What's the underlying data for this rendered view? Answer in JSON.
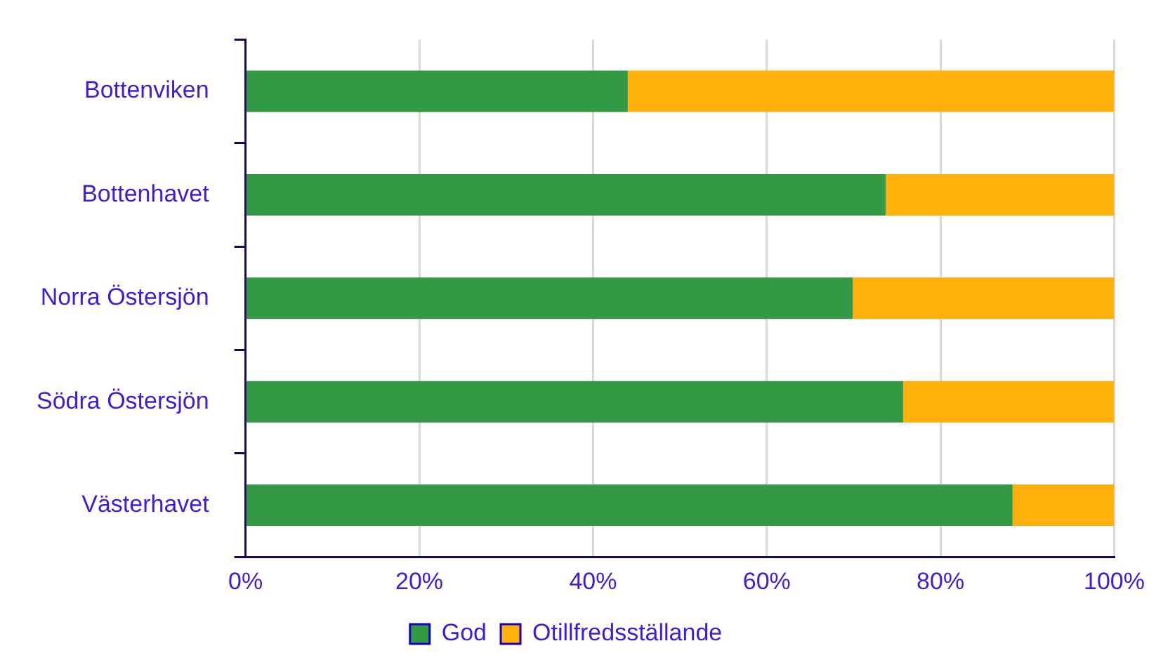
{
  "chart_data": {
    "type": "bar",
    "orientation": "horizontal",
    "stacked": true,
    "categories": [
      "Bottenviken",
      "Bottenhavet",
      "Norra Östersjön",
      "Södra Östersjön",
      "Västerhavet"
    ],
    "series": [
      {
        "name": "God",
        "color": "#339944",
        "values": [
          44.0,
          73.7,
          69.9,
          75.7,
          88.3
        ]
      },
      {
        "name": "Otillfredsställande",
        "color": "#ffb00a",
        "values": [
          56.0,
          26.3,
          30.1,
          24.3,
          11.7
        ]
      }
    ],
    "xlim": [
      0,
      100
    ],
    "xticks": [
      {
        "value": 0,
        "label": "0%"
      },
      {
        "value": 20,
        "label": "20%"
      },
      {
        "value": 40,
        "label": "40%"
      },
      {
        "value": 60,
        "label": "60%"
      },
      {
        "value": 80,
        "label": "80%"
      },
      {
        "value": 100,
        "label": "100%"
      }
    ],
    "grid": "x",
    "legend": "bottom"
  }
}
